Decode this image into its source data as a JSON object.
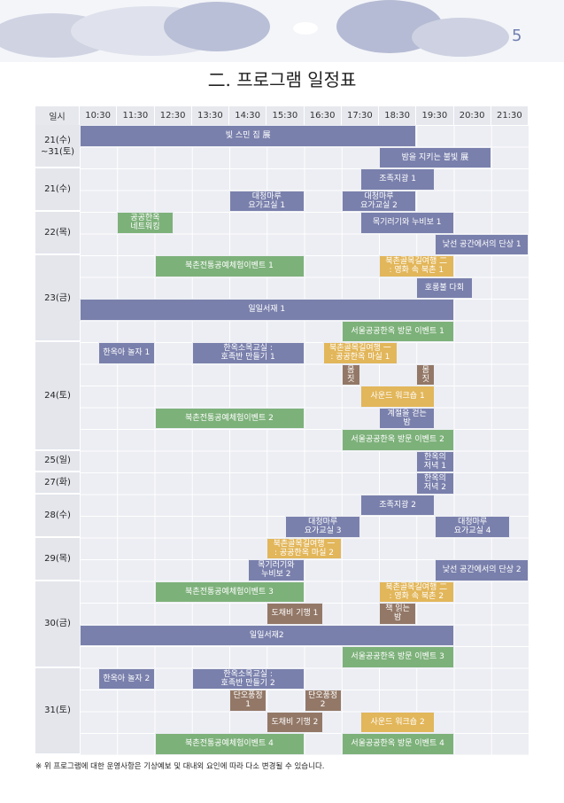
{
  "page_number": "5",
  "title": "二. 프로그램 일정표",
  "table": {
    "header": [
      "일시",
      "10:30",
      "11:30",
      "12:30",
      "13:30",
      "14:30",
      "15:30",
      "16:30",
      "17:30",
      "18:30",
      "19:30",
      "20:30",
      "21:30"
    ],
    "dates": [
      "21(수)\n~31(토)",
      "21(수)",
      "22(목)",
      "23(금)",
      "24(토)",
      "25(일)",
      "27(화)",
      "28(수)",
      "29(목)",
      "30(금)",
      "31(토)"
    ],
    "events": [
      "빛 스민 집 展",
      "밤을 지키는 불빛 展",
      "조족지광 1",
      "대청마루\n요가교실 1",
      "대청마루\n요가교실 2",
      "공공한옥\n네트워킹",
      "목기러기와 누비보 1",
      "낯선 공간에서의 단상 1",
      "북촌전통공예체험이벤트 1",
      "북촌골목길여행 二\n: 영화 속 북촌 1",
      "호롱불 다회",
      "일일서재 1",
      "서울공공한옥 방문 이벤트 1",
      "한옥아 놀자 1",
      "한옥소목교실 :\n호족반 만들기 1",
      "북촌골목길여행 一\n: 공공한옥 마실 1",
      "몸\n짓",
      "몸\n짓",
      "사운드 워크숍 1",
      "북촌전통공예체험이벤트 2",
      "계절을 걷는\n밤",
      "서울공공한옥 방문 이벤트 2",
      "한옥의\n저녁 1",
      "한옥의\n저녁 2",
      "조족지광 2",
      "대청마루\n요가교실 3",
      "대청마루\n요가교실 4",
      "북촌골목길여행 一\n: 공공한옥 마실 2",
      "목기러기와\n누비보 2",
      "낯선 공간에서의 단상 2",
      "북촌전통공예체험이벤트 3",
      "북촌골목길여행 二\n: 영화 속 북촌 2",
      "도채비 기행 1",
      "책 읽는\n밤",
      "일일서재2",
      "서울공공한옥 방문 이벤트 3",
      "한옥아 놀자 2",
      "한옥소목교실 :\n호족반 만들기 2",
      "단오풍정\n1",
      "단오풍정\n2",
      "도채비 기행 2",
      "사운드 워크숍 2",
      "북촌전통공예체험이벤트 4",
      "서울공공한옥 방문 이벤트 4"
    ]
  },
  "footnote": "※ 위 프로그램에 대한 운영사항은 기상예보 및 대내외 요인에 따라 다소 변경될 수 있습니다."
}
